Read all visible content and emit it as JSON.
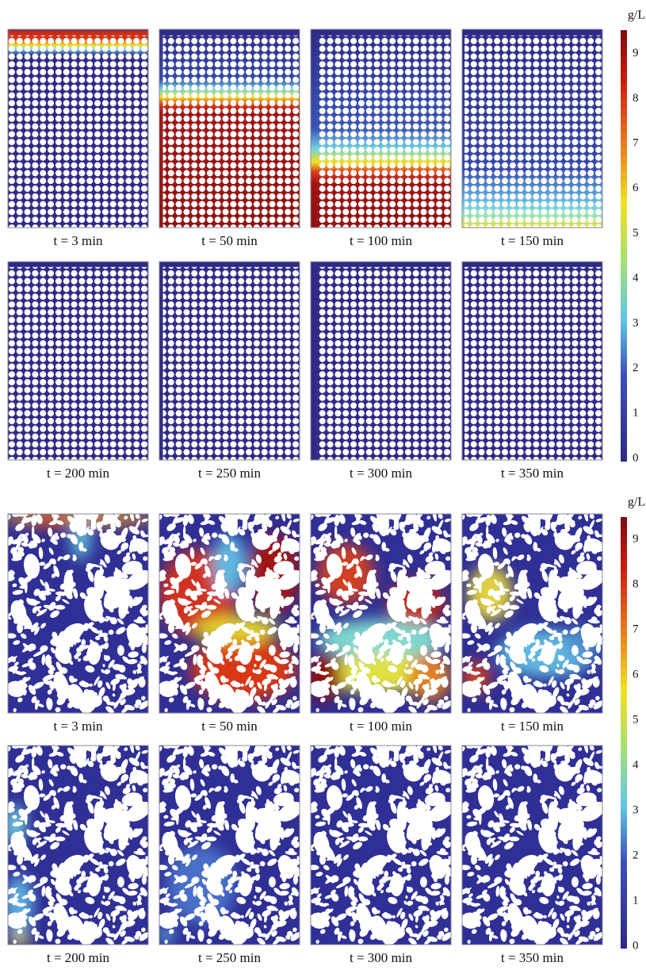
{
  "figures": [
    {
      "colorbar": {
        "unit": "g/L",
        "ticks": [
          0,
          1,
          2,
          3,
          4,
          5,
          6,
          7,
          8,
          9
        ]
      },
      "panels": [
        "t = 3 min",
        "t = 50 min",
        "t = 100 min",
        "t = 150 min",
        "t = 200 min",
        "t = 250 min",
        "t = 300 min",
        "t = 350 min"
      ]
    },
    {
      "colorbar": {
        "unit": "g/L",
        "ticks": [
          0,
          1,
          2,
          3,
          4,
          5,
          6,
          7,
          8,
          9
        ]
      },
      "panels": [
        "t = 3 min",
        "t = 50 min",
        "t = 100 min",
        "t = 150 min",
        "t = 200 min",
        "t = 250 min",
        "t = 300 min",
        "t = 350 min"
      ]
    }
  ]
}
